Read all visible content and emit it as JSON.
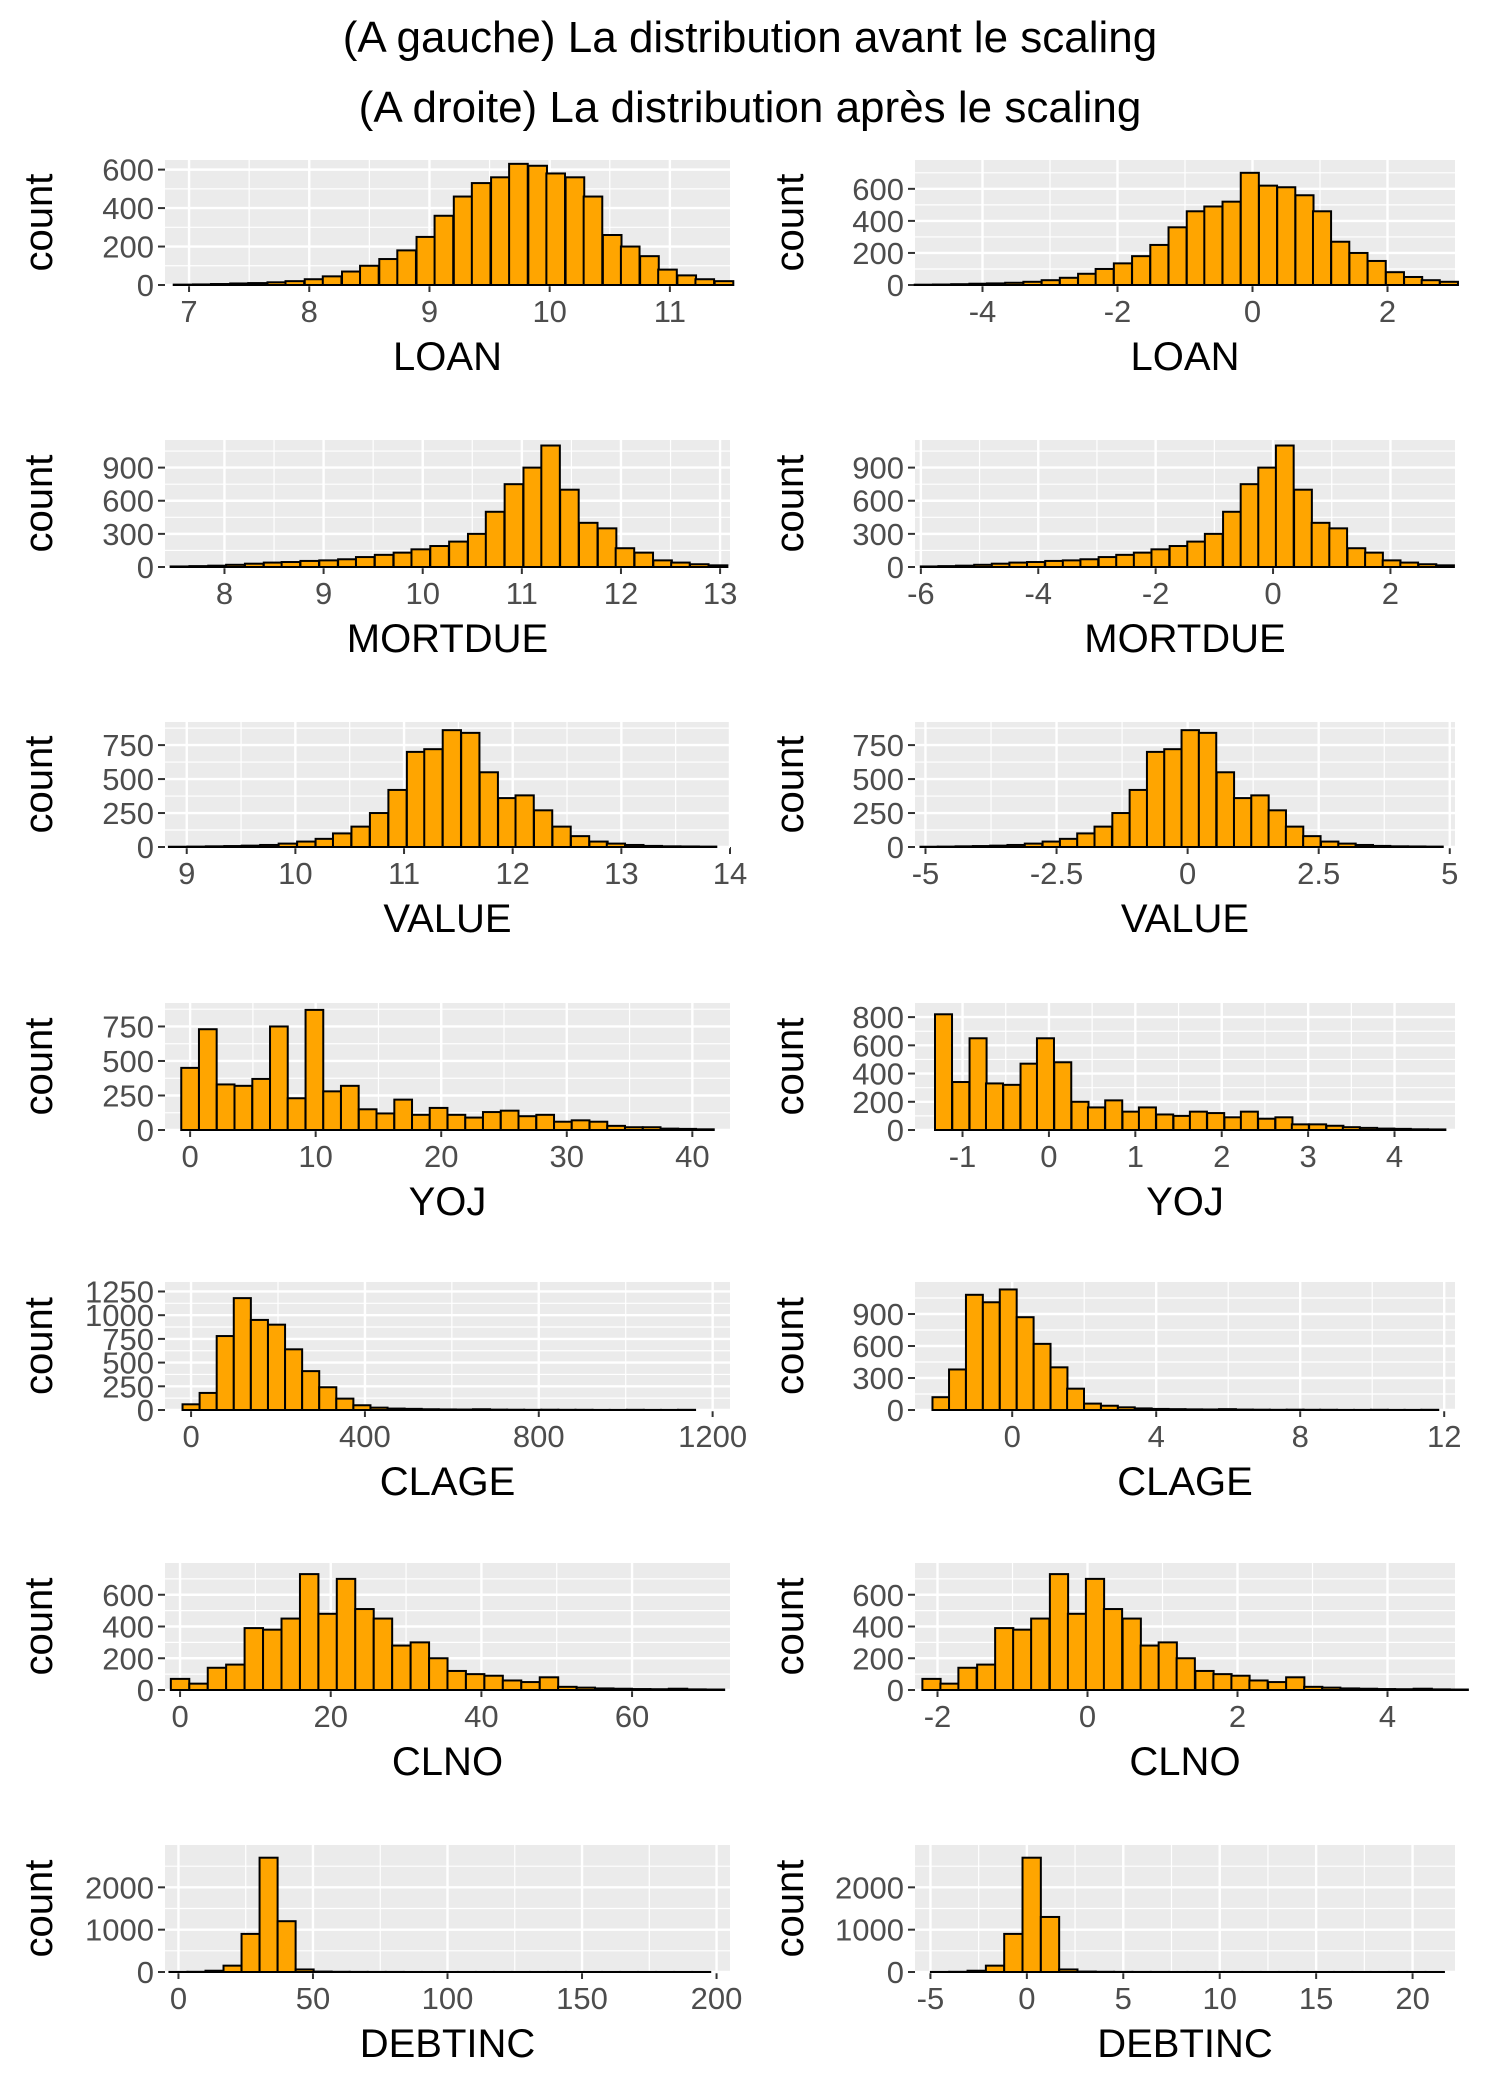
{
  "title_lines": [
    "(A gauche) La distribution avant le scaling",
    "(A droite) La distribution après le scaling"
  ],
  "colors": {
    "bar_fill": "#FFA500",
    "bar_stroke": "#000000",
    "panel_bg": "#EBEBEB",
    "grid": "#FFFFFF",
    "tick_text": "#4D4D4D"
  },
  "chart_data": [
    {
      "type": "bar",
      "subtype": "histogram",
      "xlabel": "LOAN",
      "ylabel": "count",
      "xlim": [
        6.8,
        11.5
      ],
      "xticks": [
        7,
        8,
        9,
        10,
        11
      ],
      "ylim": [
        0,
        650
      ],
      "yticks": [
        0,
        200,
        400,
        600
      ],
      "bin_width": 0.155,
      "x": [
        6.95,
        7.11,
        7.26,
        7.42,
        7.57,
        7.73,
        7.88,
        8.04,
        8.19,
        8.35,
        8.5,
        8.66,
        8.81,
        8.97,
        9.12,
        9.28,
        9.43,
        9.59,
        9.74,
        9.9,
        10.05,
        10.21,
        10.36,
        10.52,
        10.67,
        10.83,
        10.98,
        11.14,
        11.29,
        11.45
      ],
      "values": [
        2,
        3,
        5,
        8,
        10,
        14,
        20,
        30,
        45,
        70,
        100,
        135,
        180,
        250,
        360,
        460,
        530,
        560,
        630,
        620,
        580,
        560,
        460,
        260,
        200,
        150,
        80,
        50,
        30,
        20
      ]
    },
    {
      "type": "bar",
      "subtype": "histogram",
      "xlabel": "LOAN",
      "ylabel": "count",
      "xlim": [
        -5.0,
        3.0
      ],
      "xticks": [
        -4,
        -2,
        0,
        2
      ],
      "ylim": [
        0,
        780
      ],
      "yticks": [
        0,
        200,
        400,
        600
      ],
      "bin_width": 0.268,
      "x": [
        -4.87,
        -4.6,
        -4.33,
        -4.06,
        -3.8,
        -3.53,
        -3.26,
        -2.99,
        -2.72,
        -2.45,
        -2.19,
        -1.92,
        -1.65,
        -1.38,
        -1.11,
        -0.84,
        -0.58,
        -0.31,
        -0.04,
        0.23,
        0.5,
        0.77,
        1.03,
        1.3,
        1.57,
        1.84,
        2.11,
        2.38,
        2.64,
        2.91
      ],
      "values": [
        2,
        3,
        5,
        8,
        10,
        14,
        20,
        30,
        45,
        70,
        100,
        135,
        180,
        250,
        360,
        460,
        490,
        520,
        700,
        620,
        610,
        560,
        460,
        270,
        200,
        150,
        80,
        50,
        30,
        20
      ]
    },
    {
      "type": "bar",
      "subtype": "histogram",
      "xlabel": "MORTDUE",
      "ylabel": "count",
      "xlim": [
        7.4,
        13.1
      ],
      "xticks": [
        8,
        9,
        10,
        11,
        12,
        13
      ],
      "ylim": [
        0,
        1150
      ],
      "yticks": [
        0,
        300,
        600,
        900
      ],
      "bin_width": 0.187,
      "x": [
        7.55,
        7.74,
        7.93,
        8.11,
        8.3,
        8.49,
        8.67,
        8.86,
        9.05,
        9.24,
        9.42,
        9.61,
        9.8,
        9.98,
        10.17,
        10.36,
        10.55,
        10.73,
        10.92,
        11.11,
        11.29,
        11.48,
        11.67,
        11.86,
        12.04,
        12.23,
        12.42,
        12.6,
        12.79,
        12.98
      ],
      "values": [
        5,
        8,
        12,
        20,
        30,
        40,
        45,
        55,
        60,
        70,
        90,
        110,
        130,
        160,
        190,
        230,
        300,
        500,
        750,
        900,
        1100,
        700,
        400,
        350,
        170,
        130,
        60,
        40,
        25,
        15
      ]
    },
    {
      "type": "bar",
      "subtype": "histogram",
      "xlabel": "MORTDUE",
      "ylabel": "count",
      "xlim": [
        -6.1,
        3.1
      ],
      "xticks": [
        -6,
        -4,
        -2,
        0,
        2
      ],
      "ylim": [
        0,
        1150
      ],
      "yticks": [
        0,
        300,
        600,
        900
      ],
      "bin_width": 0.303,
      "x": [
        -5.85,
        -5.55,
        -5.25,
        -4.94,
        -4.64,
        -4.34,
        -4.04,
        -3.73,
        -3.43,
        -3.13,
        -2.82,
        -2.52,
        -2.22,
        -1.92,
        -1.61,
        -1.31,
        -1.01,
        -0.7,
        -0.4,
        -0.1,
        0.2,
        0.51,
        0.81,
        1.11,
        1.42,
        1.72,
        2.02,
        2.32,
        2.63,
        2.93
      ],
      "values": [
        5,
        8,
        12,
        20,
        30,
        40,
        45,
        55,
        60,
        70,
        90,
        110,
        130,
        160,
        190,
        230,
        300,
        500,
        750,
        900,
        1100,
        700,
        400,
        350,
        170,
        130,
        60,
        40,
        25,
        15
      ]
    },
    {
      "type": "bar",
      "subtype": "histogram",
      "xlabel": "VALUE",
      "ylabel": "count",
      "xlim": [
        8.8,
        14.0
      ],
      "xticks": [
        9,
        10,
        11,
        12,
        13,
        14
      ],
      "ylim": [
        0,
        920
      ],
      "yticks": [
        0,
        250,
        500,
        750
      ],
      "bin_width": 0.168,
      "x": [
        8.92,
        9.09,
        9.26,
        9.43,
        9.59,
        9.76,
        9.93,
        10.1,
        10.27,
        10.43,
        10.6,
        10.77,
        10.94,
        11.11,
        11.27,
        11.44,
        11.61,
        11.78,
        11.95,
        12.11,
        12.28,
        12.45,
        12.62,
        12.79,
        12.95,
        13.12,
        13.29,
        13.46,
        13.63,
        13.79
      ],
      "values": [
        2,
        3,
        5,
        7,
        10,
        15,
        25,
        40,
        60,
        100,
        150,
        250,
        420,
        700,
        720,
        860,
        840,
        550,
        360,
        380,
        270,
        150,
        80,
        40,
        25,
        15,
        8,
        5,
        4,
        3
      ]
    },
    {
      "type": "bar",
      "subtype": "histogram",
      "xlabel": "VALUE",
      "ylabel": "count",
      "xlim": [
        -5.2,
        5.1
      ],
      "xticks": [
        -5.0,
        -2.5,
        0.0,
        2.5,
        5.0
      ],
      "ylim": [
        0,
        920
      ],
      "yticks": [
        0,
        250,
        500,
        750
      ],
      "bin_width": 0.332,
      "x": [
        -4.93,
        -4.6,
        -4.26,
        -3.93,
        -3.6,
        -3.27,
        -2.94,
        -2.6,
        -2.27,
        -1.94,
        -1.61,
        -1.27,
        -0.94,
        -0.61,
        -0.28,
        0.05,
        0.38,
        0.72,
        1.05,
        1.38,
        1.71,
        2.04,
        2.37,
        2.71,
        3.04,
        3.37,
        3.7,
        4.04,
        4.37,
        4.7
      ],
      "values": [
        2,
        3,
        5,
        7,
        10,
        15,
        25,
        40,
        60,
        100,
        150,
        250,
        420,
        700,
        720,
        860,
        840,
        550,
        360,
        380,
        270,
        150,
        80,
        40,
        25,
        15,
        8,
        5,
        4,
        3
      ]
    },
    {
      "type": "bar",
      "subtype": "histogram",
      "xlabel": "YOJ",
      "ylabel": "count",
      "xlim": [
        -2,
        43
      ],
      "xticks": [
        0,
        10,
        20,
        30,
        40
      ],
      "ylim": [
        0,
        920
      ],
      "yticks": [
        0,
        250,
        500,
        750
      ],
      "bin_width": 1.41,
      "x": [
        0.0,
        1.41,
        2.83,
        4.24,
        5.66,
        7.07,
        8.48,
        9.9,
        11.31,
        12.72,
        14.14,
        15.55,
        16.97,
        18.38,
        19.79,
        21.21,
        22.62,
        24.03,
        25.45,
        26.86,
        28.28,
        29.69,
        31.1,
        32.52,
        33.93,
        35.34,
        36.76,
        38.17,
        39.59,
        41.0
      ],
      "values": [
        450,
        730,
        330,
        320,
        370,
        750,
        230,
        870,
        280,
        320,
        150,
        120,
        220,
        110,
        160,
        110,
        90,
        130,
        140,
        100,
        110,
        60,
        70,
        60,
        30,
        20,
        20,
        10,
        8,
        5
      ]
    },
    {
      "type": "bar",
      "subtype": "histogram",
      "xlabel": "YOJ",
      "ylabel": "count",
      "xlim": [
        -1.55,
        4.7
      ],
      "xticks": [
        -1,
        0,
        1,
        2,
        3,
        4
      ],
      "ylim": [
        0,
        900
      ],
      "yticks": [
        0,
        200,
        400,
        600,
        800
      ],
      "bin_width": 0.197,
      "x": [
        -1.22,
        -1.02,
        -0.82,
        -0.63,
        -0.43,
        -0.23,
        -0.04,
        0.16,
        0.36,
        0.55,
        0.75,
        0.95,
        1.14,
        1.34,
        1.54,
        1.73,
        1.93,
        2.13,
        2.32,
        2.52,
        2.72,
        2.91,
        3.11,
        3.31,
        3.5,
        3.7,
        3.9,
        4.09,
        4.29,
        4.49
      ],
      "values": [
        820,
        340,
        650,
        330,
        320,
        470,
        650,
        480,
        200,
        160,
        210,
        130,
        160,
        110,
        100,
        130,
        120,
        90,
        130,
        80,
        90,
        40,
        40,
        30,
        20,
        15,
        10,
        8,
        5,
        4
      ]
    },
    {
      "type": "bar",
      "subtype": "histogram",
      "xlabel": "CLAGE",
      "ylabel": "count",
      "xlim": [
        -60,
        1240
      ],
      "xticks": [
        0,
        400,
        800,
        1200
      ],
      "ylim": [
        0,
        1350
      ],
      "yticks": [
        0,
        250,
        500,
        750,
        1000,
        1250
      ],
      "bin_width": 39.3,
      "x": [
        0,
        39.3,
        78.6,
        117.9,
        157.2,
        196.6,
        235.9,
        275.2,
        314.5,
        353.8,
        393.1,
        432.4,
        471.7,
        511.0,
        550.3,
        589.7,
        629.0,
        668.3,
        707.6,
        746.9,
        786.2,
        825.5,
        864.8,
        904.1,
        943.4,
        982.8,
        1022.1,
        1061.4,
        1100.7,
        1140.0
      ],
      "values": [
        60,
        180,
        780,
        1180,
        950,
        900,
        640,
        410,
        240,
        120,
        50,
        25,
        15,
        12,
        8,
        6,
        5,
        8,
        4,
        3,
        2,
        3,
        2,
        2,
        1,
        1,
        2,
        1,
        1,
        2
      ]
    },
    {
      "type": "bar",
      "subtype": "histogram",
      "xlabel": "CLAGE",
      "ylabel": "count",
      "xlim": [
        -2.7,
        12.3
      ],
      "xticks": [
        0,
        4,
        8,
        12
      ],
      "ylim": [
        0,
        1200
      ],
      "yticks": [
        0,
        300,
        600,
        900
      ],
      "bin_width": 0.469,
      "x": [
        -1.98,
        -1.52,
        -1.05,
        -0.58,
        -0.11,
        0.36,
        0.83,
        1.3,
        1.76,
        2.23,
        2.7,
        3.17,
        3.64,
        4.11,
        4.58,
        5.04,
        5.51,
        5.98,
        6.45,
        6.92,
        7.39,
        7.86,
        8.32,
        8.79,
        9.26,
        9.73,
        10.2,
        10.67,
        11.13,
        11.6
      ],
      "values": [
        120,
        380,
        1080,
        1010,
        1130,
        870,
        620,
        400,
        200,
        60,
        40,
        25,
        15,
        10,
        8,
        6,
        5,
        8,
        4,
        3,
        2,
        3,
        2,
        2,
        1,
        1,
        2,
        1,
        1,
        2
      ]
    },
    {
      "type": "bar",
      "subtype": "histogram",
      "xlabel": "CLNO",
      "ylabel": "count",
      "xlim": [
        -2,
        73
      ],
      "xticks": [
        0,
        20,
        40,
        60
      ],
      "ylim": [
        0,
        800
      ],
      "yticks": [
        0,
        200,
        400,
        600
      ],
      "bin_width": 2.45,
      "x": [
        0,
        2.45,
        4.9,
        7.34,
        9.79,
        12.24,
        14.69,
        17.14,
        19.59,
        22.03,
        24.48,
        26.93,
        29.38,
        31.83,
        34.28,
        36.72,
        39.17,
        41.62,
        44.07,
        46.52,
        48.97,
        51.41,
        53.86,
        56.31,
        58.76,
        61.21,
        63.66,
        66.1,
        68.55,
        71.0
      ],
      "values": [
        70,
        40,
        140,
        160,
        390,
        380,
        450,
        730,
        480,
        700,
        510,
        450,
        280,
        300,
        200,
        120,
        100,
        90,
        60,
        50,
        80,
        20,
        15,
        10,
        8,
        6,
        5,
        8,
        4,
        3
      ]
    },
    {
      "type": "bar",
      "subtype": "histogram",
      "xlabel": "CLNO",
      "ylabel": "count",
      "xlim": [
        -2.3,
        4.9
      ],
      "xticks": [
        -2,
        0,
        2,
        4
      ],
      "ylim": [
        0,
        800
      ],
      "yticks": [
        0,
        200,
        400,
        600
      ],
      "bin_width": 0.243,
      "x": [
        -2.08,
        -1.84,
        -1.6,
        -1.35,
        -1.11,
        -0.87,
        -0.63,
        -0.38,
        -0.14,
        0.1,
        0.34,
        0.59,
        0.83,
        1.07,
        1.31,
        1.56,
        1.8,
        2.04,
        2.28,
        2.53,
        2.77,
        3.01,
        3.25,
        3.5,
        3.74,
        3.98,
        4.22,
        4.47,
        4.71,
        4.95
      ],
      "values": [
        70,
        40,
        140,
        160,
        390,
        380,
        450,
        730,
        480,
        700,
        510,
        450,
        280,
        300,
        200,
        120,
        100,
        90,
        60,
        50,
        80,
        20,
        15,
        10,
        8,
        6,
        5,
        8,
        4,
        3
      ]
    },
    {
      "type": "bar",
      "subtype": "histogram",
      "xlabel": "DEBTINC",
      "ylabel": "count",
      "xlim": [
        -5,
        205
      ],
      "xticks": [
        0,
        50,
        100,
        150,
        200
      ],
      "ylim": [
        0,
        3000
      ],
      "yticks": [
        0,
        1000,
        2000
      ],
      "bin_width": 6.7,
      "x": [
        0.0,
        6.7,
        13.4,
        20.1,
        26.8,
        33.5,
        40.2,
        46.9,
        53.6,
        60.3,
        67.0,
        73.7,
        80.4,
        87.1,
        93.8,
        100.5,
        107.2,
        113.9,
        120.6,
        127.3,
        134.0,
        140.7,
        147.4,
        154.1,
        160.8,
        167.5,
        174.2,
        180.9,
        187.6,
        194.3
      ],
      "values": [
        2,
        5,
        30,
        150,
        900,
        2700,
        1200,
        60,
        10,
        5,
        3,
        2,
        2,
        1,
        1,
        1,
        1,
        1,
        1,
        1,
        1,
        1,
        1,
        1,
        1,
        1,
        1,
        1,
        1,
        1
      ]
    },
    {
      "type": "bar",
      "subtype": "histogram",
      "xlabel": "DEBTINC",
      "ylabel": "count",
      "xlim": [
        -5.8,
        22.2
      ],
      "xticks": [
        -5,
        0,
        5,
        10,
        15,
        20
      ],
      "ylim": [
        0,
        3000
      ],
      "yticks": [
        0,
        1000,
        2000
      ],
      "bin_width": 0.95,
      "x": [
        -4.5,
        -3.55,
        -2.6,
        -1.65,
        -0.7,
        0.25,
        1.2,
        2.15,
        3.1,
        4.05,
        5.0,
        5.95,
        6.9,
        7.85,
        8.8,
        9.75,
        10.7,
        11.65,
        12.6,
        13.55,
        14.5,
        15.45,
        16.4,
        17.35,
        18.3,
        19.25,
        20.2,
        21.15
      ],
      "values": [
        2,
        5,
        30,
        150,
        900,
        2700,
        1300,
        60,
        10,
        5,
        3,
        2,
        2,
        1,
        1,
        1,
        1,
        1,
        1,
        1,
        1,
        1,
        1,
        1,
        1,
        1,
        1,
        1
      ]
    }
  ]
}
